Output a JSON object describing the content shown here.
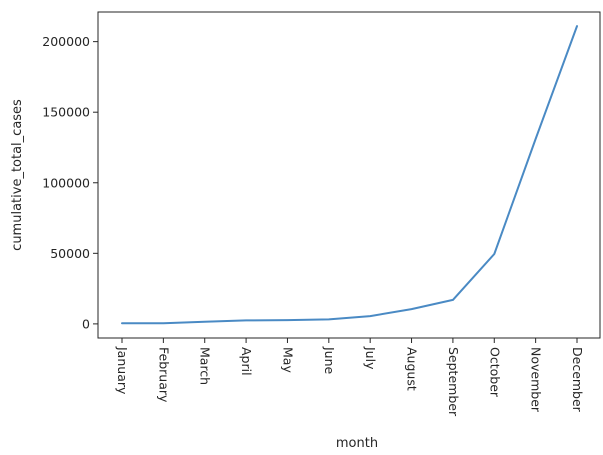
{
  "chart_data": {
    "type": "line",
    "title": "",
    "xlabel": "month",
    "ylabel": "cumulative_total_cases",
    "categories": [
      "January",
      "February",
      "March",
      "April",
      "May",
      "June",
      "July",
      "August",
      "September",
      "October",
      "November",
      "December"
    ],
    "series": [
      {
        "name": "",
        "values": [
          500,
          500,
          1500,
          2500,
          2700,
          3200,
          5500,
          10500,
          17000,
          49500,
          131000,
          211000
        ]
      }
    ],
    "ylim": [
      -10000,
      221000
    ],
    "yticks": [
      0,
      50000,
      100000,
      150000,
      200000
    ],
    "ytick_labels": [
      "0",
      "50000",
      "100000",
      "150000",
      "200000"
    ],
    "grid": false,
    "line_color": "#4a8ac4"
  }
}
